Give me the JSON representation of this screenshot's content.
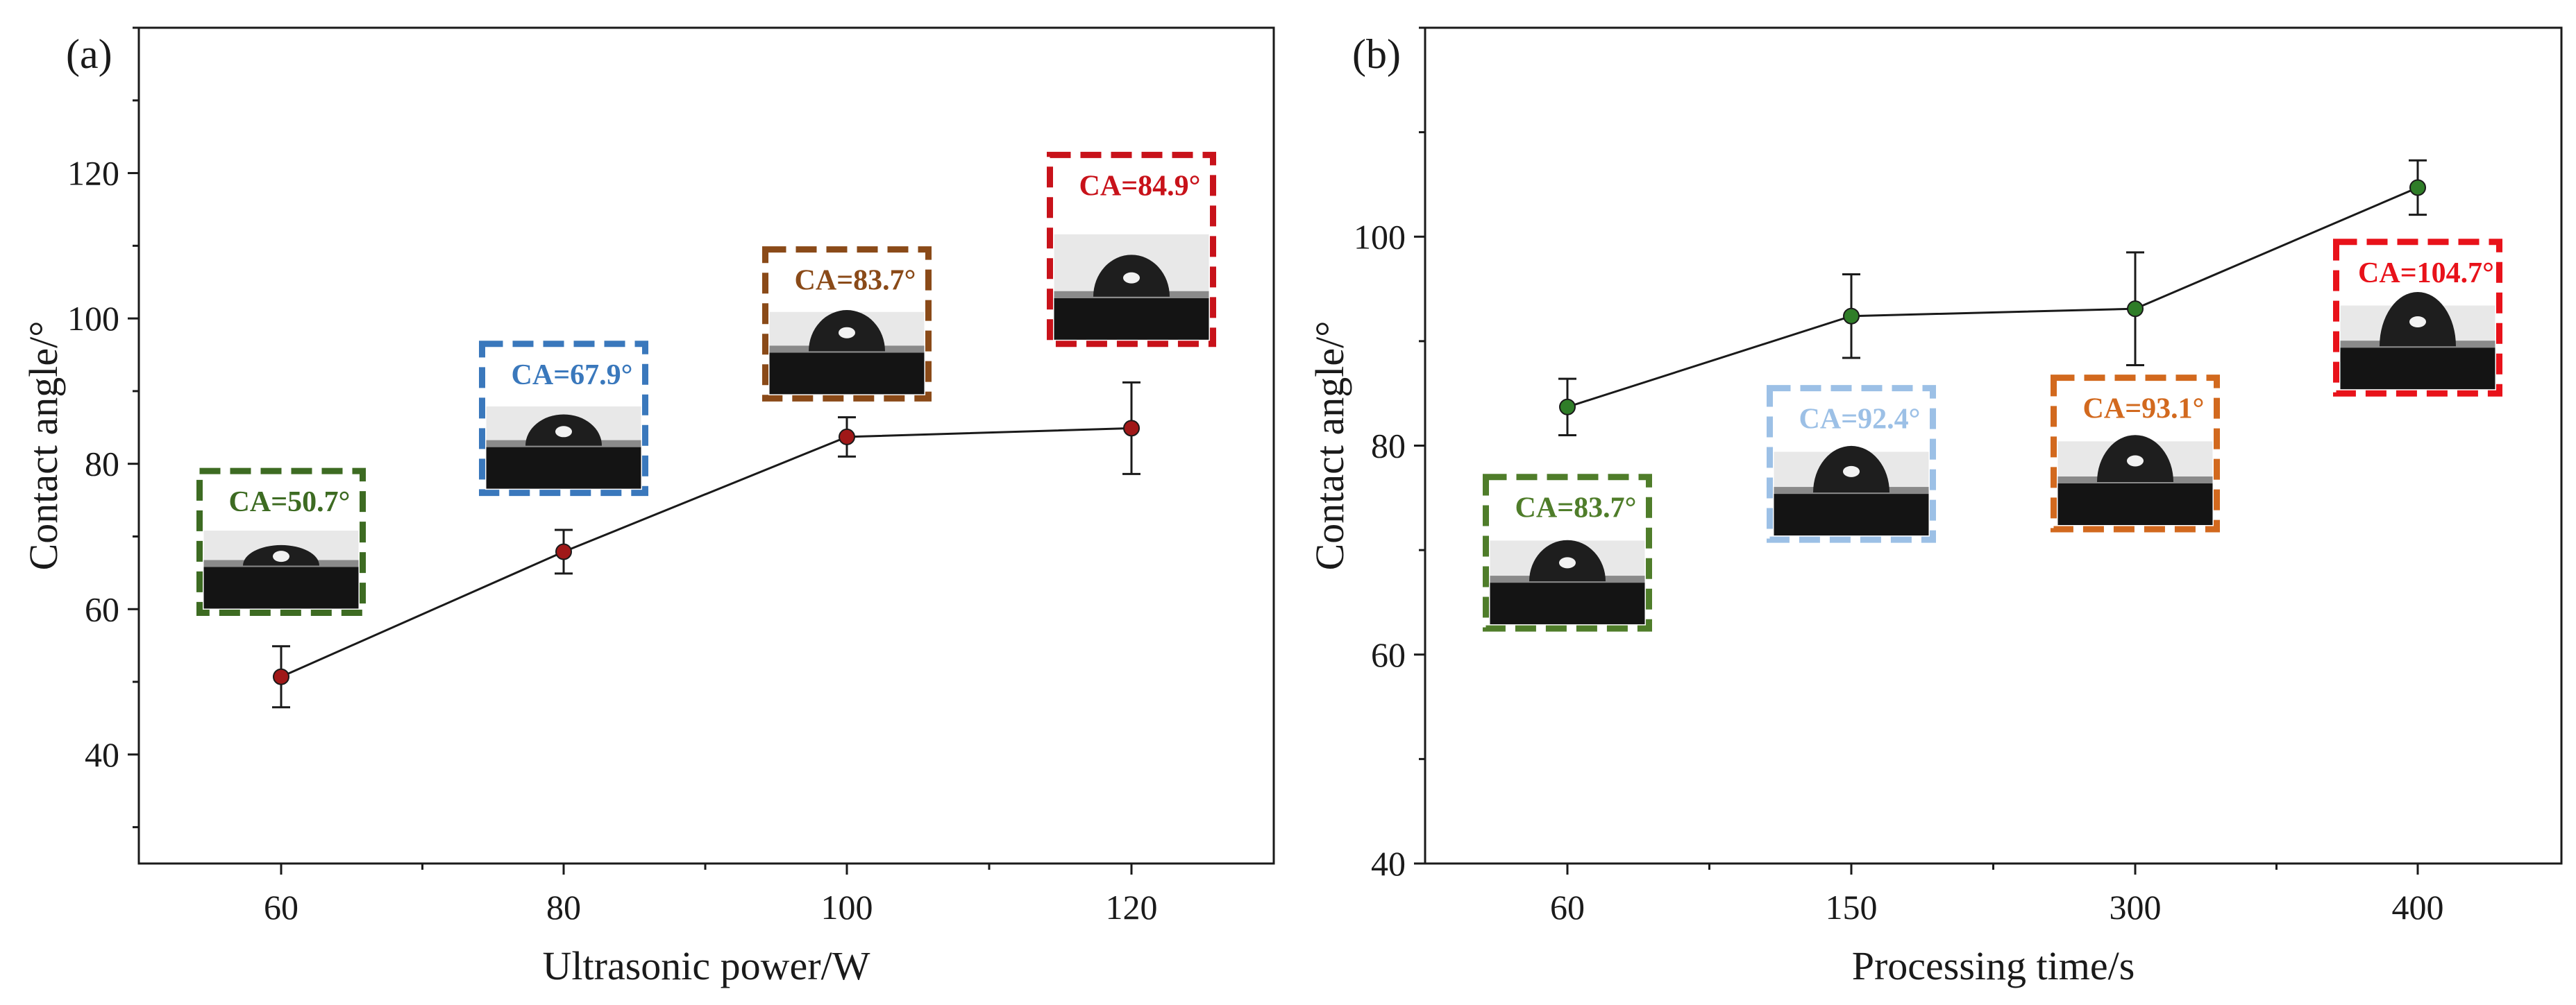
{
  "chart_data": [
    {
      "type": "line",
      "panel_label": "(a)",
      "xlabel": "Ultrasonic power/W",
      "ylabel": "Contact angle/°",
      "categories": [
        "60",
        "80",
        "100",
        "120"
      ],
      "ylim": [
        25,
        140
      ],
      "yticks": [
        40,
        60,
        80,
        100,
        120
      ],
      "grid": false,
      "series": [
        {
          "name": "Contact angle",
          "values": [
            50.7,
            67.9,
            83.7,
            84.9
          ],
          "errors": [
            4.2,
            3.0,
            2.7,
            6.3
          ],
          "color": "#a01818"
        }
      ],
      "annotations": [
        {
          "label": "CA=50.7°",
          "color": "#3d6b22",
          "box_top": 79,
          "box_bottom": 59.5
        },
        {
          "label": "CA=67.9°",
          "color": "#3a78bc",
          "box_top": 96.5,
          "box_bottom": 76
        },
        {
          "label": "CA=83.7°",
          "color": "#8a4a18",
          "box_top": 109.5,
          "box_bottom": 89
        },
        {
          "label": "CA=84.9°",
          "color": "#c8121a",
          "box_top": 122.5,
          "box_bottom": 96.5
        }
      ]
    },
    {
      "type": "line",
      "panel_label": "(b)",
      "xlabel": "Processing time/s",
      "ylabel": "Contact angle/°",
      "categories": [
        "60",
        "150",
        "300",
        "400"
      ],
      "ylim": [
        40,
        120
      ],
      "yticks": [
        40,
        60,
        80,
        100
      ],
      "grid": false,
      "series": [
        {
          "name": "Contact angle",
          "values": [
            83.7,
            92.4,
            93.1,
            104.7
          ],
          "errors": [
            2.7,
            4.0,
            5.4,
            2.6
          ],
          "color": "#2f7d28"
        }
      ],
      "annotations": [
        {
          "label": "CA=83.7°",
          "color": "#4f7d2a",
          "box_top": 77,
          "box_bottom": 62.5
        },
        {
          "label": "CA=92.4°",
          "color": "#9cc0e6",
          "box_top": 85.5,
          "box_bottom": 71
        },
        {
          "label": "CA=93.1°",
          "color": "#d2691e",
          "box_top": 86.5,
          "box_bottom": 72
        },
        {
          "label": "CA=104.7°",
          "color": "#e8121a",
          "box_top": 99.5,
          "box_bottom": 85
        }
      ]
    }
  ]
}
